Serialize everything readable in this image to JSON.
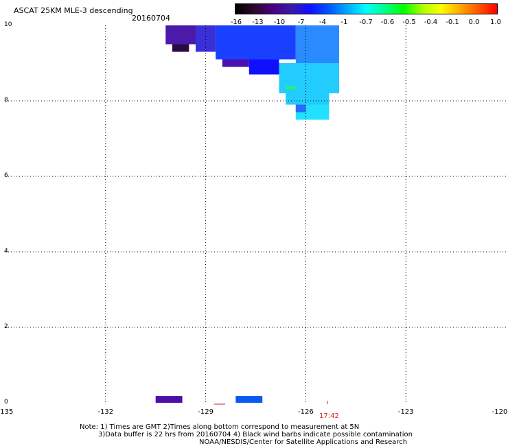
{
  "title": "ASCAT 25KM MLE-3 descending",
  "date": "20160704",
  "colorbar": {
    "labels": [
      "-16",
      "-13",
      "-10",
      "-7",
      "-4",
      "-1",
      "-0.7",
      "-0.6",
      "-0.5",
      "-0.4",
      "-0.1",
      "0.0",
      "1.0"
    ],
    "colors": [
      "#000000",
      "#2a0a2a",
      "#4b0082",
      "#3a1aa8",
      "#1010ff",
      "#0055ff",
      "#00aaff",
      "#00ffff",
      "#00ff88",
      "#00ff00",
      "#aaff00",
      "#ffff00",
      "#ffaa00",
      "#ff5500",
      "#ff0000"
    ]
  },
  "axes": {
    "x_ticks": [
      "-135",
      "-132",
      "-129",
      "-126",
      "-123",
      "-120"
    ],
    "y_ticks": [
      "0",
      "2",
      "4",
      "6",
      "8",
      "10"
    ],
    "x_range": [
      -135,
      -120
    ],
    "y_range": [
      0,
      10
    ]
  },
  "swath_time": "17:42",
  "notes": {
    "line1": "Note: 1) Times are GMT 2)Times along bottom correspond to measurement at 5N",
    "line2": "3)Data buffer is 22 hrs from 20160704 4) Black wind barbs indicate possible contamination",
    "credit": "NOAA/NESDIS/Center for Satellite Applications and Research"
  },
  "data_patches": [
    {
      "lon0": -130.2,
      "lon1": -129.3,
      "lat0": 9.5,
      "lat1": 10.0,
      "color": "#4b1aa8"
    },
    {
      "lon0": -130.0,
      "lon1": -129.5,
      "lat0": 9.3,
      "lat1": 9.5,
      "color": "#2a0a40"
    },
    {
      "lon0": -129.3,
      "lon1": -128.7,
      "lat0": 9.3,
      "lat1": 10.0,
      "color": "#3a30d8"
    },
    {
      "lon0": -128.7,
      "lon1": -126.3,
      "lat0": 9.1,
      "lat1": 10.0,
      "color": "#1a40ff"
    },
    {
      "lon0": -126.3,
      "lon1": -125.0,
      "lat0": 9.0,
      "lat1": 10.0,
      "color": "#2a8aff"
    },
    {
      "lon0": -128.5,
      "lon1": -127.7,
      "lat0": 8.9,
      "lat1": 9.1,
      "color": "#4b10b0"
    },
    {
      "lon0": -127.7,
      "lon1": -126.8,
      "lat0": 8.7,
      "lat1": 9.1,
      "color": "#1010ff"
    },
    {
      "lon0": -126.8,
      "lon1": -125.0,
      "lat0": 8.2,
      "lat1": 9.0,
      "color": "#22ccff"
    },
    {
      "lon0": -126.6,
      "lon1": -125.3,
      "lat0": 7.9,
      "lat1": 8.2,
      "color": "#22ccff"
    },
    {
      "lon0": -126.3,
      "lon1": -125.3,
      "lat0": 7.5,
      "lat1": 7.9,
      "color": "#22e0ff"
    },
    {
      "lon0": -126.6,
      "lon1": -126.3,
      "lat0": 8.3,
      "lat1": 8.4,
      "color": "#22ee88"
    },
    {
      "lon0": -126.3,
      "lon1": -126.0,
      "lat0": 7.7,
      "lat1": 7.9,
      "color": "#2a6aff"
    },
    {
      "lon0": -130.5,
      "lon1": -129.7,
      "lat0": 0.0,
      "lat1": 0.18,
      "color": "#4b10a8"
    },
    {
      "lon0": -128.1,
      "lon1": -127.3,
      "lat0": 0.0,
      "lat1": 0.18,
      "color": "#0a5af0"
    }
  ]
}
